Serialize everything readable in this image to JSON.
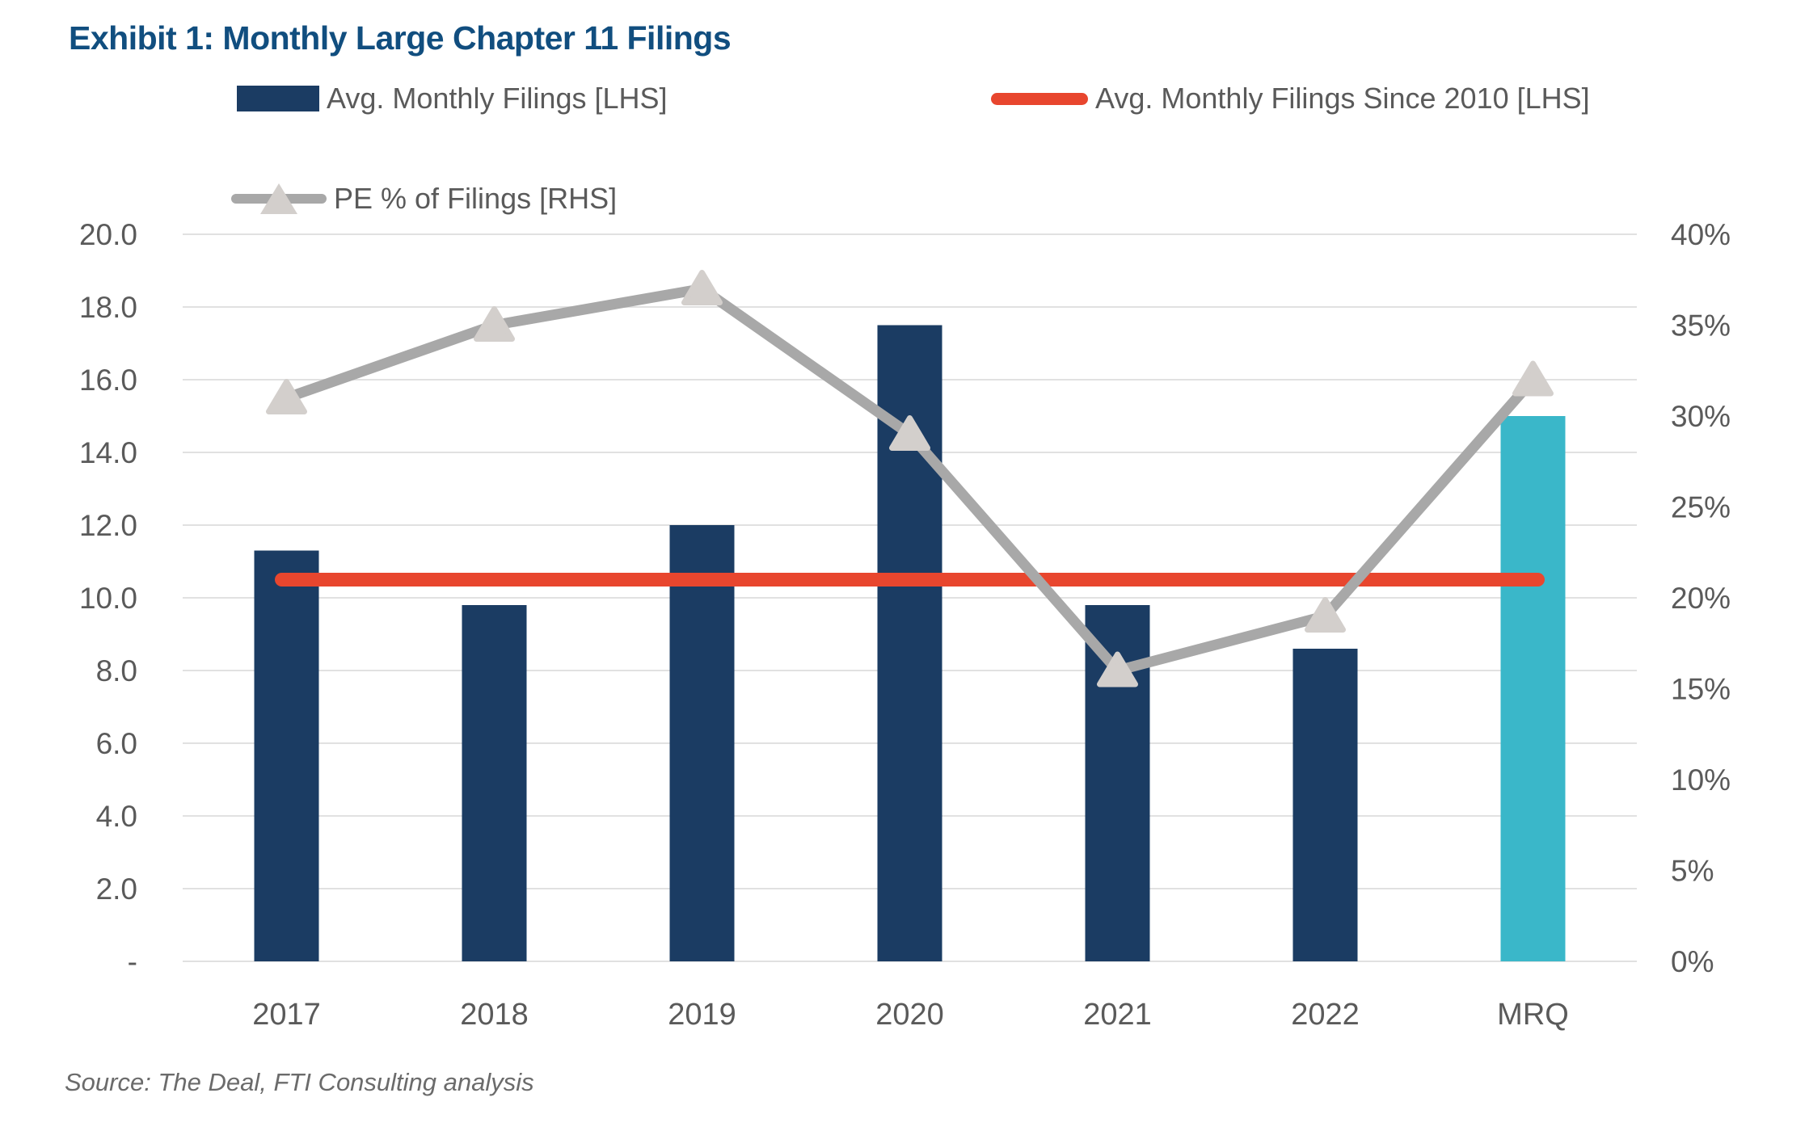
{
  "title": "Exhibit 1: Monthly Large Chapter 11 Filings",
  "source": "Source: The Deal, FTI Consulting analysis",
  "legend": {
    "bar_label": "Avg. Monthly Filings [LHS]",
    "avg_line_label": "Avg. Monthly Filings Since 2010 [LHS]",
    "pe_line_label": "PE % of Filings [RHS]"
  },
  "colors": {
    "bar": "#1B3C63",
    "bar_highlight": "#3AB7C9",
    "avg_line": "#E8462E",
    "pe_line": "#A8A8A8",
    "pe_marker": "#D3CFCC",
    "grid": "#E1E1E1",
    "tick_text": "#5A5A5A",
    "title_text": "#114E7F"
  },
  "chart_data": {
    "type": "bar+line combo",
    "title": "Exhibit 1: Monthly Large Chapter 11 Filings",
    "categories": [
      "2017",
      "2018",
      "2019",
      "2020",
      "2021",
      "2022",
      "MRQ"
    ],
    "series": [
      {
        "name": "Avg. Monthly Filings [LHS]",
        "type": "bar",
        "axis": "left",
        "values": [
          11.3,
          9.8,
          12.0,
          17.5,
          9.8,
          8.6,
          15.0
        ],
        "highlight_category": "MRQ"
      },
      {
        "name": "Avg. Monthly Filings Since 2010 [LHS]",
        "type": "line",
        "axis": "left",
        "values": [
          10.5,
          10.5,
          10.5,
          10.5,
          10.5,
          10.5,
          10.5
        ]
      },
      {
        "name": "PE % of Filings [RHS]",
        "type": "line",
        "axis": "right",
        "marker": "triangle",
        "values": [
          31,
          35,
          37,
          29,
          16,
          19,
          32
        ]
      }
    ],
    "left_axis": {
      "min": 0,
      "max": 20,
      "tick_step": 2,
      "tick_labels": [
        "-",
        "2.0",
        "4.0",
        "6.0",
        "8.0",
        "10.0",
        "12.0",
        "14.0",
        "16.0",
        "18.0",
        "20.0"
      ]
    },
    "right_axis": {
      "min": 0,
      "max": 40,
      "tick_step": 5,
      "tick_labels": [
        "0%",
        "5%",
        "10%",
        "15%",
        "20%",
        "25%",
        "30%",
        "35%",
        "40%"
      ]
    },
    "grid": "horizontal only",
    "legend_position": "top"
  }
}
